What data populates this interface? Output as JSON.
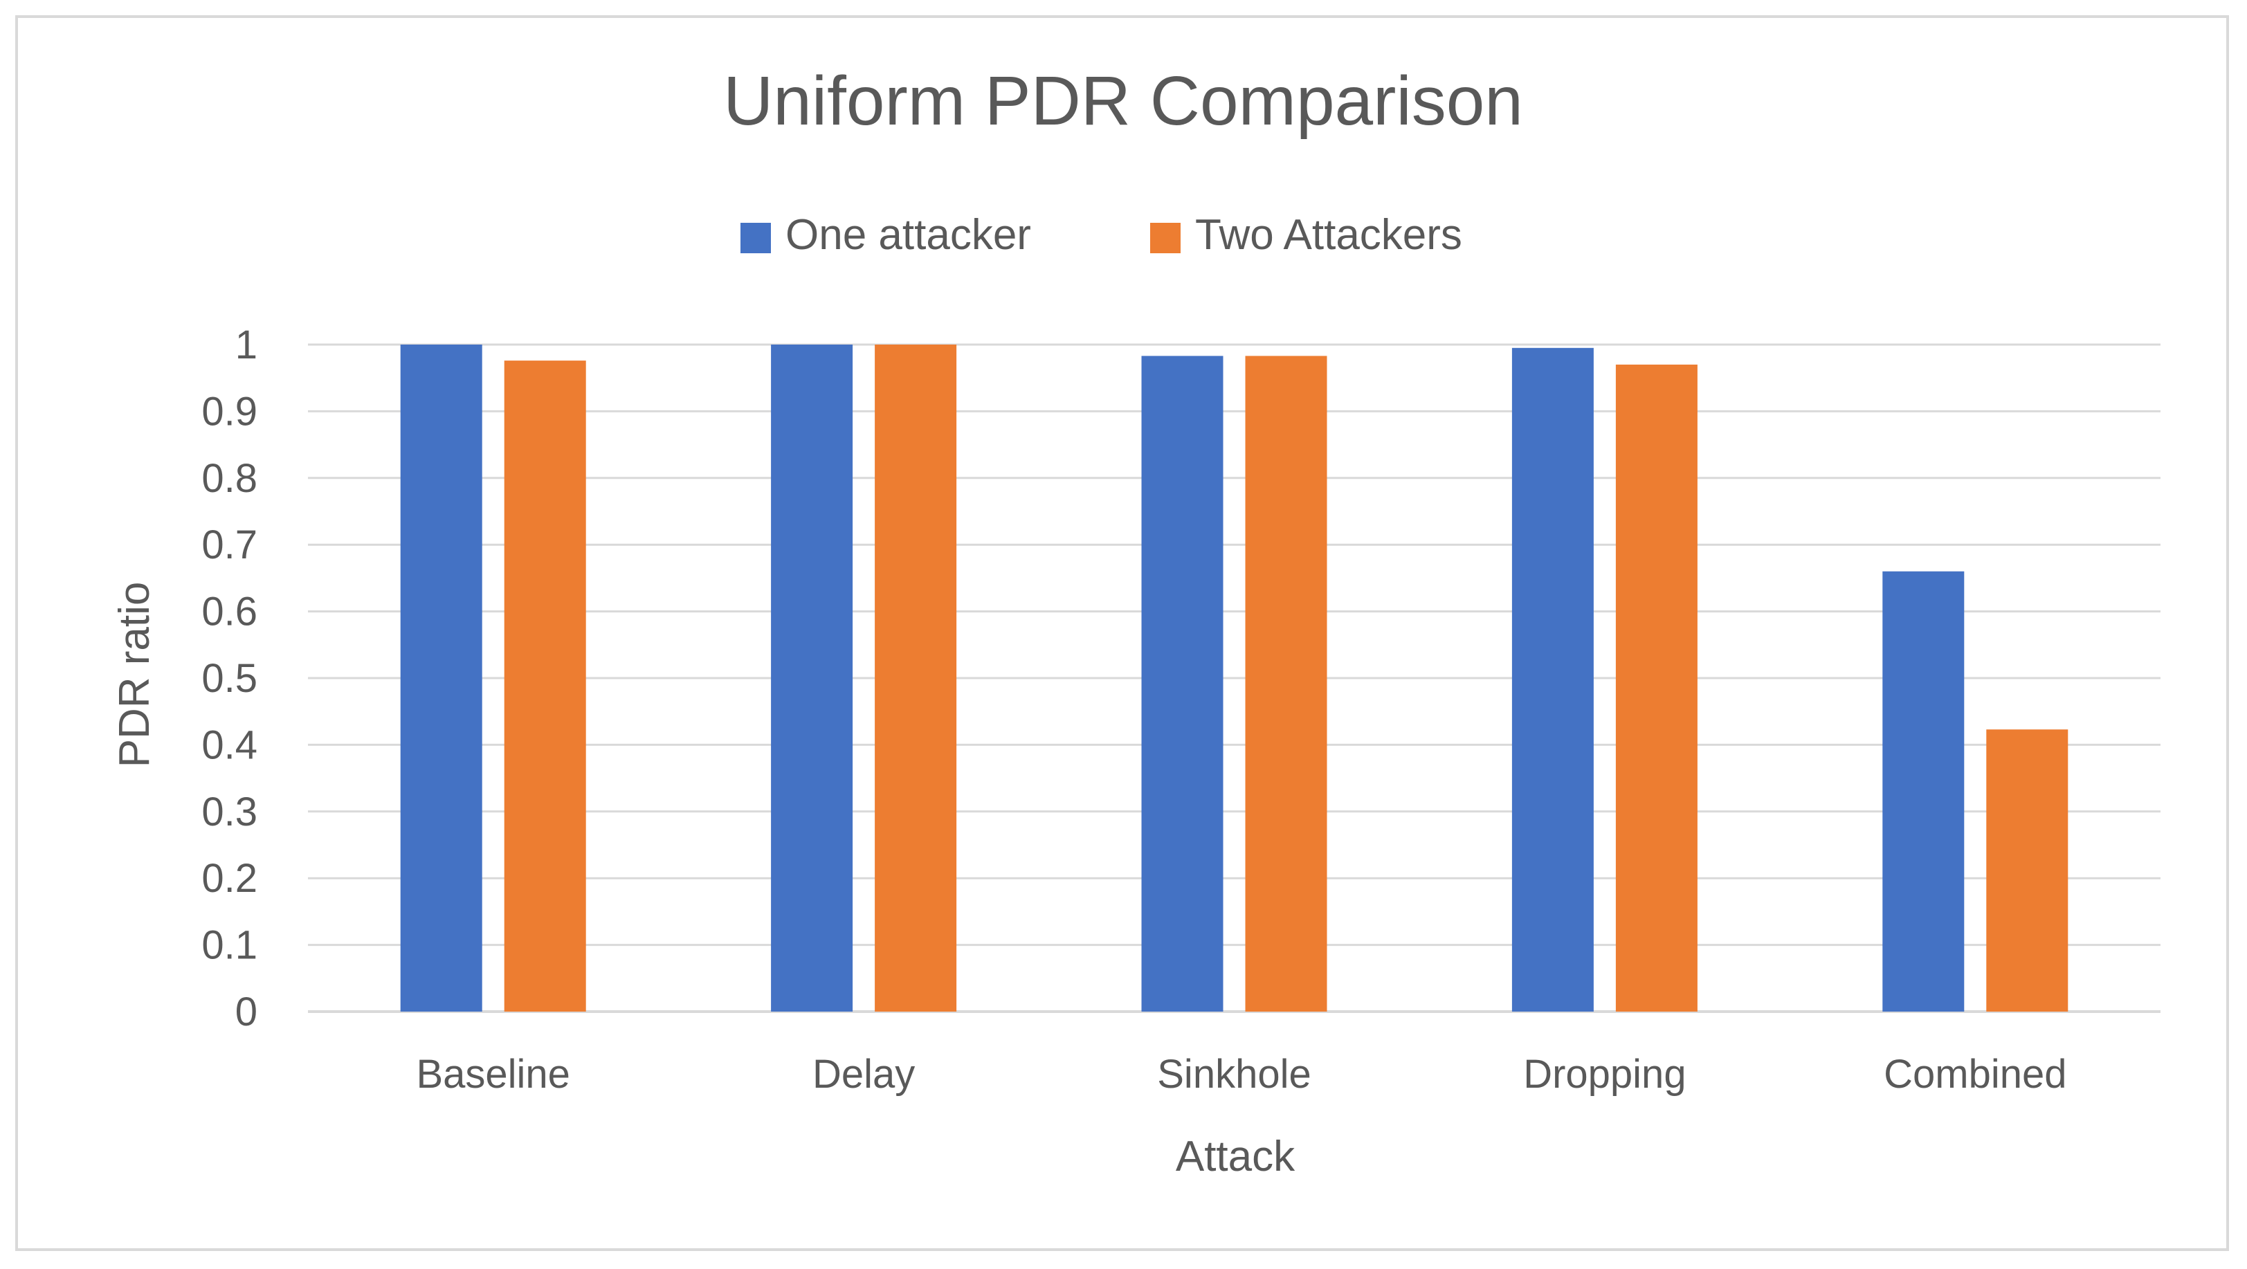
{
  "chart_data": {
    "type": "bar",
    "title": "Uniform PDR Comparison",
    "xlabel": "Attack",
    "ylabel": "PDR ratio",
    "categories": [
      "Baseline",
      "Delay",
      "Sinkhole",
      "Dropping",
      "Combined"
    ],
    "series": [
      {
        "name": "One attacker",
        "color": "#4472c4",
        "values": [
          1.0,
          1.0,
          0.983,
          0.995,
          0.66
        ]
      },
      {
        "name": "Two Attackers",
        "color": "#ed7d31",
        "values": [
          0.976,
          1.0,
          0.983,
          0.97,
          0.423
        ]
      }
    ],
    "ylim": [
      0,
      1
    ],
    "yticks": [
      "0",
      "0.1",
      "0.2",
      "0.3",
      "0.4",
      "0.5",
      "0.6",
      "0.7",
      "0.8",
      "0.9",
      "1"
    ],
    "grid": true,
    "legend_position": "top",
    "gridline_color": "#d9d9d9"
  }
}
